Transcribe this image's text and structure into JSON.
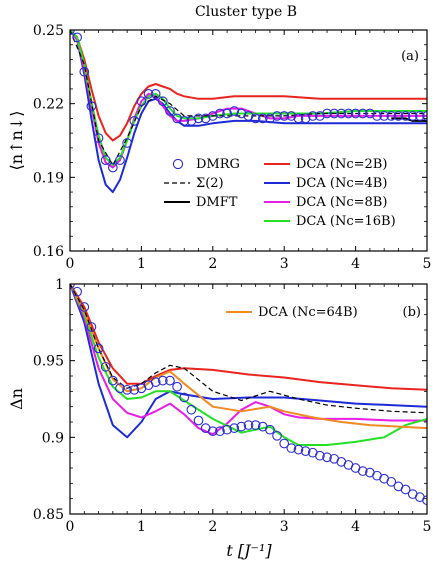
{
  "figure": {
    "title": "Cluster type B",
    "xlabel": "t [J⁻¹]"
  },
  "chart_data": [
    {
      "type": "line",
      "panel_label": "(a)",
      "ylabel": "⟨n↑n↓⟩",
      "xlim": [
        0,
        5
      ],
      "ylim": [
        0.16,
        0.25
      ],
      "xticks": [
        "0",
        "1",
        "2",
        "3",
        "4",
        "5"
      ],
      "yticks": [
        "0.16",
        "0.19",
        "0.22",
        "0.25"
      ],
      "legend": {
        "placement": "bottom",
        "entries": [
          "DMRG",
          "Σ(2)",
          "DMFT",
          "DCA (Nc=2B)",
          "DCA (Nc=4B)",
          "DCA (Nc=8B)",
          "DCA (Nc=16B)"
        ]
      },
      "series": [
        {
          "name": "DCA (Nc=2B)",
          "color": "#e8241f",
          "x": [
            0,
            0.1,
            0.2,
            0.3,
            0.4,
            0.5,
            0.6,
            0.7,
            0.8,
            0.9,
            1.0,
            1.1,
            1.2,
            1.3,
            1.4,
            1.5,
            1.6,
            1.8,
            2.0,
            2.3,
            2.6,
            3.0,
            3.5,
            4.0,
            4.5,
            5.0
          ],
          "y": [
            0.25,
            0.247,
            0.238,
            0.226,
            0.215,
            0.208,
            0.205,
            0.207,
            0.212,
            0.219,
            0.224,
            0.227,
            0.228,
            0.227,
            0.226,
            0.224,
            0.223,
            0.222,
            0.222,
            0.223,
            0.223,
            0.223,
            0.222,
            0.222,
            0.222,
            0.222
          ]
        },
        {
          "name": "DCA (Nc=4B)",
          "color": "#1e2ad6",
          "x": [
            0,
            0.1,
            0.2,
            0.3,
            0.4,
            0.5,
            0.6,
            0.7,
            0.8,
            0.9,
            1.0,
            1.1,
            1.2,
            1.3,
            1.4,
            1.5,
            1.6,
            1.8,
            2.0,
            2.3,
            2.6,
            3.0,
            3.5,
            4.0,
            4.5,
            5.0
          ],
          "y": [
            0.25,
            0.246,
            0.232,
            0.214,
            0.197,
            0.187,
            0.184,
            0.189,
            0.198,
            0.208,
            0.216,
            0.221,
            0.222,
            0.22,
            0.216,
            0.213,
            0.211,
            0.211,
            0.212,
            0.213,
            0.213,
            0.212,
            0.212,
            0.212,
            0.212,
            0.212
          ]
        },
        {
          "name": "DCA (Nc=8B)",
          "color": "#e61ee6",
          "x": [
            0,
            0.1,
            0.2,
            0.3,
            0.4,
            0.5,
            0.6,
            0.7,
            0.8,
            0.9,
            1.0,
            1.1,
            1.2,
            1.3,
            1.4,
            1.5,
            1.6,
            1.8,
            2.0,
            2.2,
            2.4,
            2.6,
            2.8,
            3.0,
            3.2,
            3.5,
            4.0,
            4.5,
            5.0
          ],
          "y": [
            0.25,
            0.246,
            0.234,
            0.219,
            0.204,
            0.196,
            0.194,
            0.197,
            0.205,
            0.214,
            0.221,
            0.224,
            0.223,
            0.219,
            0.215,
            0.213,
            0.213,
            0.214,
            0.216,
            0.218,
            0.218,
            0.216,
            0.214,
            0.214,
            0.215,
            0.215,
            0.215,
            0.215,
            0.215
          ]
        },
        {
          "name": "DCA (Nc=16B)",
          "color": "#24e024",
          "x": [
            0,
            0.1,
            0.2,
            0.3,
            0.4,
            0.5,
            0.6,
            0.7,
            0.8,
            0.9,
            1.0,
            1.1,
            1.2,
            1.3,
            1.4,
            1.5,
            1.6,
            1.8,
            2.0,
            2.3,
            2.6,
            3.0,
            3.5,
            4.0,
            4.5,
            5.0
          ],
          "y": [
            0.25,
            0.247,
            0.236,
            0.221,
            0.207,
            0.198,
            0.195,
            0.198,
            0.205,
            0.213,
            0.219,
            0.223,
            0.224,
            0.222,
            0.218,
            0.215,
            0.214,
            0.214,
            0.215,
            0.216,
            0.216,
            0.216,
            0.216,
            0.217,
            0.217,
            0.217
          ]
        },
        {
          "name": "Σ(2)",
          "color": "#000000",
          "dash": true,
          "x": [
            0,
            0.2,
            0.4,
            0.6,
            0.8,
            1.0,
            1.2,
            1.4,
            1.6,
            2.0,
            2.5,
            3.0,
            3.5,
            4.0,
            4.5,
            5.0
          ],
          "y": [
            0.25,
            0.236,
            0.205,
            0.195,
            0.206,
            0.219,
            0.223,
            0.22,
            0.215,
            0.215,
            0.215,
            0.215,
            0.216,
            0.216,
            0.216,
            0.216
          ]
        },
        {
          "name": "DMFT",
          "color": "#000000",
          "x": [
            4.5,
            4.6,
            4.7,
            4.8,
            4.9,
            5.0
          ],
          "y": [
            0.214,
            0.214,
            0.214,
            0.213,
            0.213,
            0.213
          ]
        },
        {
          "name": "DMRG",
          "color": "#2b2bd0",
          "marker": "circle",
          "x": [
            0,
            0.1,
            0.2,
            0.3,
            0.4,
            0.5,
            0.6,
            0.7,
            0.8,
            0.9,
            1.0,
            1.1,
            1.2,
            1.3,
            1.4,
            1.5,
            1.6,
            1.7,
            1.8,
            1.9,
            2.0,
            2.1,
            2.2,
            2.3,
            2.4,
            2.5,
            2.6,
            2.7,
            2.8,
            2.9,
            3.0,
            3.1,
            3.2,
            3.3,
            3.4,
            3.5,
            3.6,
            3.7,
            3.8,
            3.9,
            4.0,
            4.1,
            4.2,
            4.3,
            4.4,
            4.5,
            4.6,
            4.7,
            4.8,
            4.9,
            5.0
          ],
          "y": [
            0.25,
            0.247,
            0.233,
            0.219,
            0.206,
            0.197,
            0.194,
            0.197,
            0.204,
            0.213,
            0.221,
            0.224,
            0.224,
            0.221,
            0.217,
            0.214,
            0.213,
            0.213,
            0.214,
            0.214,
            0.215,
            0.216,
            0.216,
            0.217,
            0.216,
            0.215,
            0.214,
            0.214,
            0.214,
            0.215,
            0.215,
            0.215,
            0.214,
            0.214,
            0.215,
            0.215,
            0.216,
            0.216,
            0.216,
            0.216,
            0.216,
            0.216,
            0.216,
            0.215,
            0.215,
            0.215,
            0.215,
            0.215,
            0.215,
            0.215,
            0.215
          ]
        }
      ]
    },
    {
      "type": "line",
      "panel_label": "(b)",
      "ylabel": "Δn",
      "xlim": [
        0,
        5
      ],
      "ylim": [
        0.85,
        1.0
      ],
      "xticks": [
        "0",
        "1",
        "2",
        "3",
        "4",
        "5"
      ],
      "yticks": [
        "0.85",
        "0.9",
        "0.95",
        "1"
      ],
      "legend": {
        "placement": "top-right",
        "entries": [
          "DCA (Nc=64B)"
        ]
      },
      "series": [
        {
          "name": "DCA (Nc=2B)",
          "color": "#e8241f",
          "x": [
            0,
            0.2,
            0.4,
            0.6,
            0.8,
            1.0,
            1.2,
            1.4,
            1.6,
            2.0,
            2.5,
            3.0,
            3.5,
            4.0,
            4.5,
            5.0
          ],
          "y": [
            1.0,
            0.985,
            0.962,
            0.945,
            0.935,
            0.935,
            0.94,
            0.944,
            0.945,
            0.944,
            0.941,
            0.939,
            0.936,
            0.934,
            0.932,
            0.931
          ]
        },
        {
          "name": "DCA (Nc=4B)",
          "color": "#1e2ad6",
          "x": [
            0,
            0.2,
            0.4,
            0.6,
            0.8,
            1.0,
            1.2,
            1.4,
            1.6,
            2.0,
            2.5,
            3.0,
            3.5,
            4.0,
            4.5,
            5.0
          ],
          "y": [
            1.0,
            0.975,
            0.935,
            0.908,
            0.9,
            0.91,
            0.925,
            0.93,
            0.928,
            0.925,
            0.926,
            0.926,
            0.924,
            0.922,
            0.921,
            0.92
          ]
        },
        {
          "name": "DCA (Nc=8B)",
          "color": "#e61ee6",
          "x": [
            0,
            0.2,
            0.4,
            0.6,
            0.8,
            1.0,
            1.2,
            1.4,
            1.6,
            1.8,
            2.0,
            2.2,
            2.4,
            2.6,
            2.8,
            3.0,
            3.2,
            3.5,
            4.0,
            4.5,
            5.0
          ],
          "y": [
            1.0,
            0.978,
            0.945,
            0.925,
            0.916,
            0.913,
            0.917,
            0.922,
            0.915,
            0.906,
            0.902,
            0.909,
            0.918,
            0.923,
            0.92,
            0.915,
            0.913,
            0.912,
            0.912,
            0.911,
            0.911
          ]
        },
        {
          "name": "DCA (Nc=16B)",
          "color": "#24e024",
          "x": [
            0,
            0.2,
            0.4,
            0.6,
            0.8,
            1.0,
            1.2,
            1.4,
            1.6,
            2.0,
            2.4,
            2.8,
            3.0,
            3.2,
            3.6,
            4.0,
            4.4,
            4.7,
            5.0
          ],
          "y": [
            1.0,
            0.98,
            0.952,
            0.933,
            0.925,
            0.926,
            0.93,
            0.93,
            0.924,
            0.912,
            0.903,
            0.907,
            0.9,
            0.895,
            0.895,
            0.897,
            0.9,
            0.908,
            0.912
          ]
        },
        {
          "name": "DCA (Nc=64B)",
          "color": "#f08a22",
          "x": [
            0,
            0.2,
            0.4,
            0.6,
            0.8,
            1.0,
            1.2,
            1.4,
            1.6,
            2.0,
            2.4,
            2.8,
            3.0,
            3.4,
            3.8,
            4.2,
            4.6,
            5.0
          ],
          "y": [
            1.0,
            0.982,
            0.958,
            0.938,
            0.93,
            0.932,
            0.939,
            0.943,
            0.935,
            0.92,
            0.917,
            0.92,
            0.917,
            0.913,
            0.91,
            0.908,
            0.907,
            0.906
          ]
        },
        {
          "name": "Σ(2)",
          "color": "#000000",
          "dash": true,
          "x": [
            0,
            0.2,
            0.4,
            0.6,
            0.8,
            1.0,
            1.2,
            1.4,
            1.6,
            2.0,
            2.4,
            2.8,
            3.2,
            3.6,
            4.0,
            4.5,
            5.0
          ],
          "y": [
            1.0,
            0.983,
            0.958,
            0.939,
            0.932,
            0.935,
            0.942,
            0.947,
            0.945,
            0.93,
            0.924,
            0.93,
            0.925,
            0.921,
            0.919,
            0.917,
            0.916
          ]
        },
        {
          "name": "DMRG",
          "color": "#2b2bd0",
          "marker": "circle",
          "x": [
            0,
            0.1,
            0.2,
            0.3,
            0.4,
            0.5,
            0.6,
            0.7,
            0.8,
            0.9,
            1.0,
            1.1,
            1.2,
            1.3,
            1.4,
            1.5,
            1.6,
            1.7,
            1.8,
            1.9,
            2.0,
            2.1,
            2.2,
            2.3,
            2.4,
            2.5,
            2.6,
            2.7,
            2.8,
            2.9,
            3.0,
            3.1,
            3.2,
            3.3,
            3.4,
            3.5,
            3.6,
            3.7,
            3.8,
            3.9,
            4.0,
            4.1,
            4.2,
            4.3,
            4.4,
            4.5,
            4.6,
            4.7,
            4.8,
            4.9,
            5.0
          ],
          "y": [
            1.0,
            0.995,
            0.985,
            0.972,
            0.958,
            0.946,
            0.937,
            0.932,
            0.931,
            0.931,
            0.932,
            0.934,
            0.936,
            0.937,
            0.937,
            0.933,
            0.926,
            0.918,
            0.911,
            0.906,
            0.904,
            0.904,
            0.905,
            0.906,
            0.907,
            0.908,
            0.908,
            0.907,
            0.905,
            0.901,
            0.896,
            0.893,
            0.892,
            0.891,
            0.89,
            0.888,
            0.887,
            0.886,
            0.884,
            0.882,
            0.88,
            0.878,
            0.877,
            0.875,
            0.873,
            0.871,
            0.868,
            0.866,
            0.863,
            0.861,
            0.859
          ]
        }
      ]
    }
  ]
}
